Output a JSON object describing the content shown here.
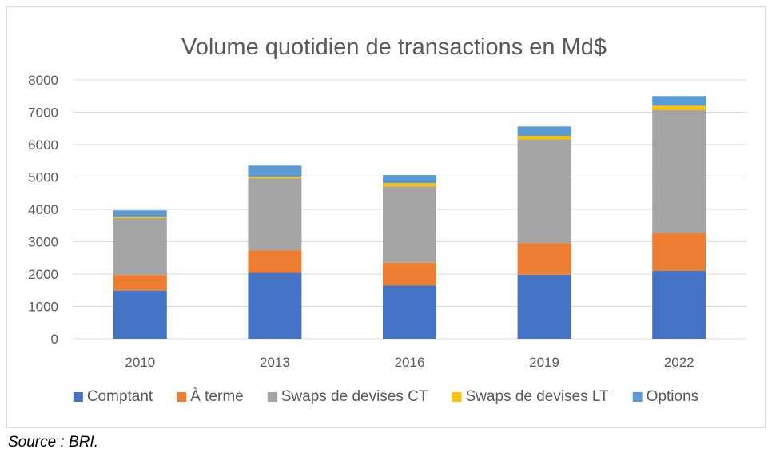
{
  "chart_data": {
    "type": "bar",
    "stacked": true,
    "title": "Volume quotidien de transactions en Md$",
    "xlabel": "",
    "ylabel": "",
    "ylim": [
      0,
      8000
    ],
    "yticks": [
      0,
      1000,
      2000,
      3000,
      4000,
      5000,
      6000,
      7000,
      8000
    ],
    "grid": true,
    "legend_position": "bottom",
    "categories": [
      "2010",
      "2013",
      "2016",
      "2019",
      "2022"
    ],
    "series": [
      {
        "name": "Comptant",
        "color": "#4472C4",
        "values": [
          1490,
          2040,
          1650,
          1980,
          2100
        ]
      },
      {
        "name": "À terme",
        "color": "#ED7D31",
        "values": [
          480,
          690,
          700,
          980,
          1160
        ]
      },
      {
        "name": "Swaps de devises CT",
        "color": "#A5A5A5",
        "values": [
          1760,
          2230,
          2360,
          3200,
          3810
        ]
      },
      {
        "name": "Swaps de devises LT",
        "color": "#FFC000",
        "values": [
          40,
          50,
          100,
          110,
          130
        ]
      },
      {
        "name": "Options",
        "color": "#5B9BD5",
        "values": [
          200,
          340,
          250,
          290,
          300
        ]
      }
    ]
  },
  "source_note": "Source : BRI."
}
